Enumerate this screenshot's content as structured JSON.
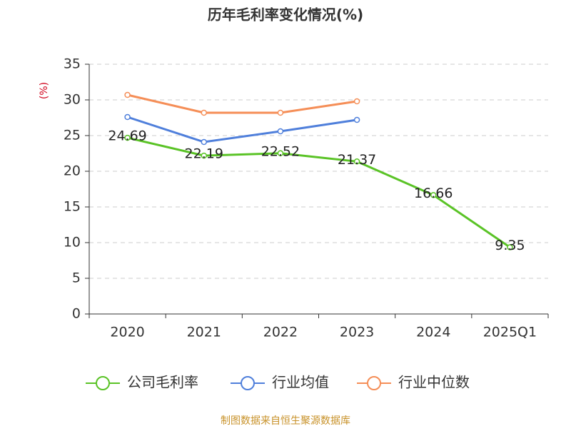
{
  "chart_data": {
    "type": "line",
    "title": "历年毛利率变化情况(%)",
    "y_label": "(%)",
    "categories": [
      "2020",
      "2021",
      "2022",
      "2023",
      "2024",
      "2025Q1"
    ],
    "series": [
      {
        "name": "公司毛利率",
        "color": "#5ac326",
        "values": [
          24.69,
          22.19,
          22.52,
          21.37,
          16.66,
          9.35
        ],
        "show_labels": true
      },
      {
        "name": "行业均值",
        "color": "#4f7fdb",
        "values": [
          27.6,
          24.1,
          25.6,
          27.2,
          null,
          null
        ],
        "show_labels": false
      },
      {
        "name": "行业中位数",
        "color": "#f58e57",
        "values": [
          30.7,
          28.2,
          28.2,
          29.8,
          null,
          null
        ],
        "show_labels": false
      }
    ],
    "ylim": [
      0,
      35
    ],
    "yticks": [
      0,
      5,
      10,
      15,
      20,
      25,
      30,
      35
    ],
    "grid": true,
    "legend": "bottom",
    "source": "制图数据来自恒生聚源数据库"
  }
}
